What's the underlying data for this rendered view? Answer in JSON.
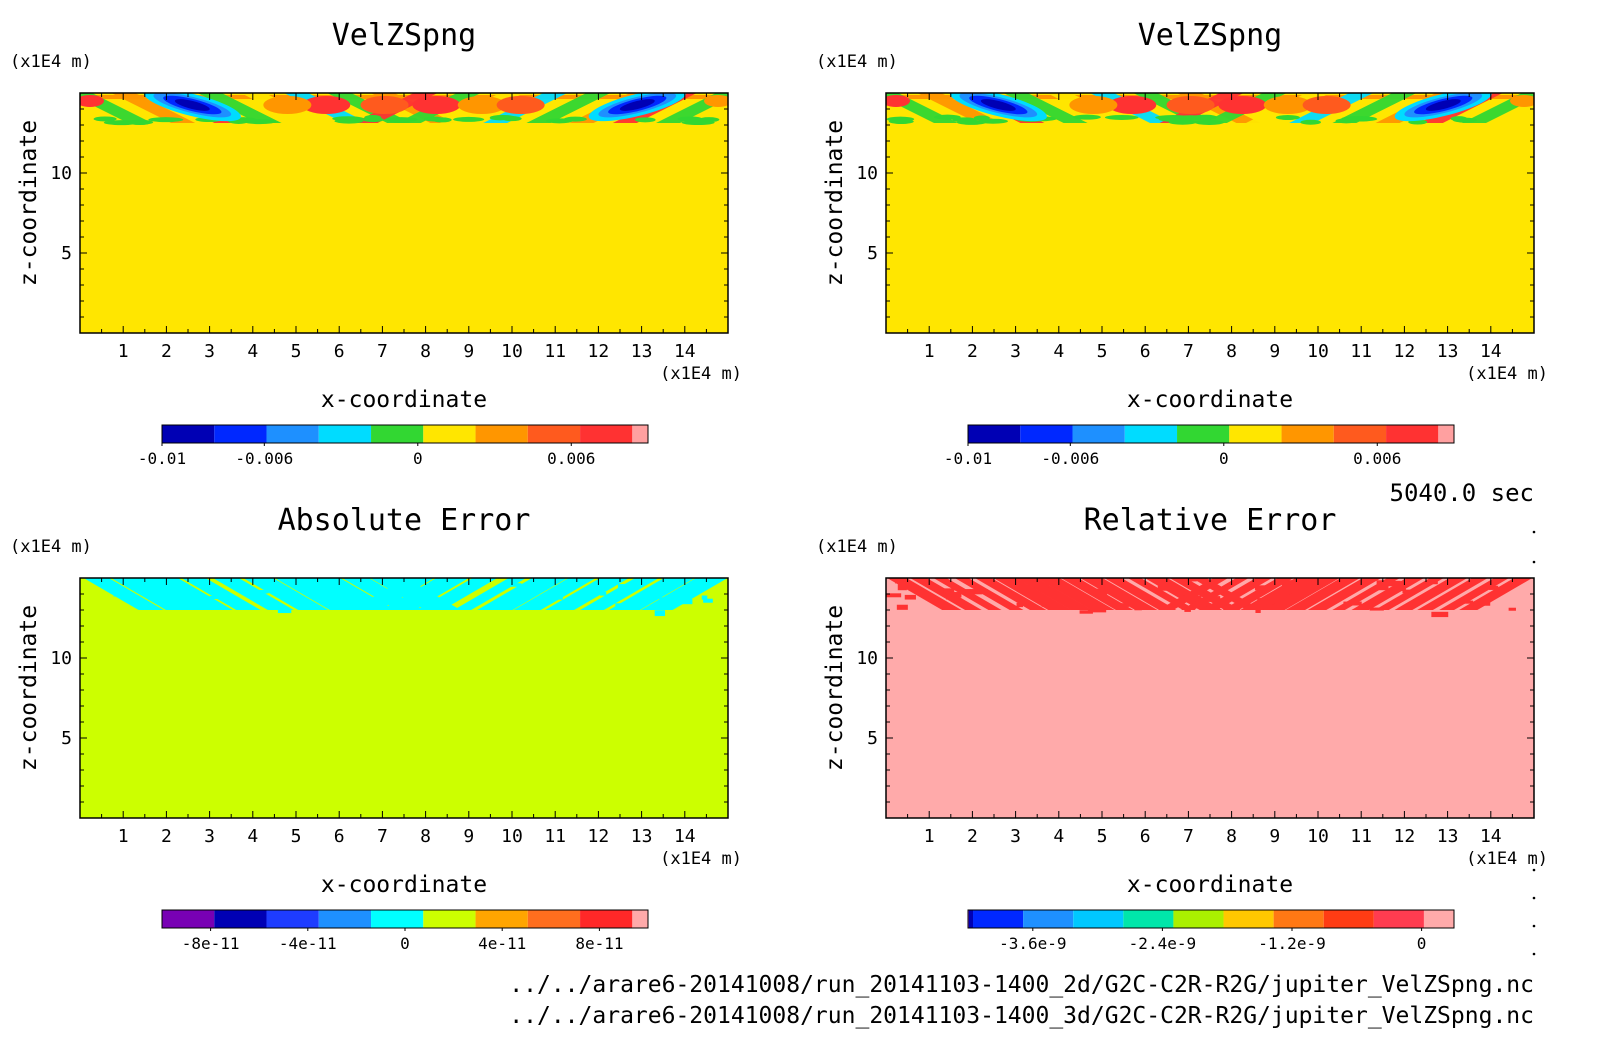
{
  "timestamp": "5040.0 sec",
  "files": [
    "../../arare6-20141008/run_20141103-1400_2d/G2C-C2R-R2G/jupiter_VelZSpng.nc",
    "../../arare6-20141008/run_20141103-1400_3d/G2C-C2R-R2G/jupiter_VelZSpng.nc"
  ],
  "chart_data": [
    {
      "type": "heatmap",
      "title": "VelZSpng",
      "xlabel": "x-coordinate",
      "ylabel": "z-coordinate",
      "x_unit": "(x1E4 m)",
      "y_unit": "(x1E4 m)",
      "xlim": [
        0,
        15
      ],
      "ylim": [
        0,
        15
      ],
      "xticks": [
        "1",
        "2",
        "3",
        "4",
        "5",
        "6",
        "7",
        "8",
        "9",
        "10",
        "11",
        "12",
        "13",
        "14"
      ],
      "yticks": [
        "5",
        "10"
      ],
      "background_color": "#ffe600",
      "pattern": "wave",
      "colorbar": {
        "colors": [
          "#0000b4",
          "#0028ff",
          "#1e90ff",
          "#00dcff",
          "#32d732",
          "#ffe600",
          "#ff9600",
          "#ff5a1e",
          "#ff3232",
          "#ffa0a0"
        ],
        "tick_labels": [
          "-0.01",
          "-0.006",
          "0",
          "0.006"
        ],
        "tick_values": [
          -0.01,
          -0.006,
          0,
          0.006
        ],
        "range": [
          -0.01,
          0.009
        ]
      }
    },
    {
      "type": "heatmap",
      "title": "VelZSpng",
      "xlabel": "x-coordinate",
      "ylabel": "z-coordinate",
      "x_unit": "(x1E4 m)",
      "y_unit": "(x1E4 m)",
      "xlim": [
        0,
        15
      ],
      "ylim": [
        0,
        15
      ],
      "xticks": [
        "1",
        "2",
        "3",
        "4",
        "5",
        "6",
        "7",
        "8",
        "9",
        "10",
        "11",
        "12",
        "13",
        "14"
      ],
      "yticks": [
        "5",
        "10"
      ],
      "background_color": "#ffe600",
      "pattern": "wave",
      "colorbar": {
        "colors": [
          "#0000b4",
          "#0028ff",
          "#1e90ff",
          "#00dcff",
          "#32d732",
          "#ffe600",
          "#ff9600",
          "#ff5a1e",
          "#ff3232",
          "#ffa0a0"
        ],
        "tick_labels": [
          "-0.01",
          "-0.006",
          "0",
          "0.006"
        ],
        "tick_values": [
          -0.01,
          -0.006,
          0,
          0.006
        ],
        "range": [
          -0.01,
          0.009
        ]
      }
    },
    {
      "type": "heatmap",
      "title": "Absolute Error",
      "xlabel": "x-coordinate",
      "ylabel": "z-coordinate",
      "x_unit": "(x1E4 m)",
      "y_unit": "(x1E4 m)",
      "xlim": [
        0,
        15
      ],
      "ylim": [
        0,
        15
      ],
      "xticks": [
        "1",
        "2",
        "3",
        "4",
        "5",
        "6",
        "7",
        "8",
        "9",
        "10",
        "11",
        "12",
        "13",
        "14"
      ],
      "yticks": [
        "5",
        "10"
      ],
      "background_color": "#ccff00",
      "pattern": "stripes",
      "pattern_color": "#00ffff",
      "colorbar": {
        "colors": [
          "#7800b4",
          "#0000b4",
          "#1e3cff",
          "#1e90ff",
          "#00ffff",
          "#ccff00",
          "#ffa500",
          "#ff6e1e",
          "#ff2828",
          "#ffaaaa"
        ],
        "tick_labels": [
          "-8e-11",
          "-4e-11",
          "0",
          "4e-11",
          "8e-11"
        ],
        "tick_values": [
          -8e-11,
          -4e-11,
          0,
          4e-11,
          8e-11
        ],
        "range": [
          -1e-10,
          1e-10
        ]
      }
    },
    {
      "type": "heatmap",
      "title": "Relative Error",
      "xlabel": "x-coordinate",
      "ylabel": "z-coordinate",
      "x_unit": "(x1E4 m)",
      "y_unit": "(x1E4 m)",
      "xlim": [
        0,
        15
      ],
      "ylim": [
        0,
        15
      ],
      "xticks": [
        "1",
        "2",
        "3",
        "4",
        "5",
        "6",
        "7",
        "8",
        "9",
        "10",
        "11",
        "12",
        "13",
        "14"
      ],
      "yticks": [
        "5",
        "10"
      ],
      "background_color": "#ffaaaa",
      "pattern": "stripes",
      "pattern_color": "#ff3232",
      "colorbar": {
        "colors": [
          "#7800b4",
          "#0000b4",
          "#0028ff",
          "#1e90ff",
          "#00c8ff",
          "#00e6aa",
          "#aaf000",
          "#ffc800",
          "#ff7814",
          "#ff3c14",
          "#ff3c50",
          "#ffaaaa"
        ],
        "widths": [
          0.018,
          0.082,
          1,
          1,
          1,
          1,
          1,
          1,
          1,
          1,
          1,
          0.6
        ],
        "tick_labels": [
          "-3.6e-9",
          "-2.4e-9",
          "-1.2e-9",
          "0"
        ],
        "tick_values": [
          -3.6e-09,
          -2.4e-09,
          -1.2e-09,
          0
        ],
        "range": [
          -4.2e-09,
          3e-10
        ]
      }
    }
  ]
}
